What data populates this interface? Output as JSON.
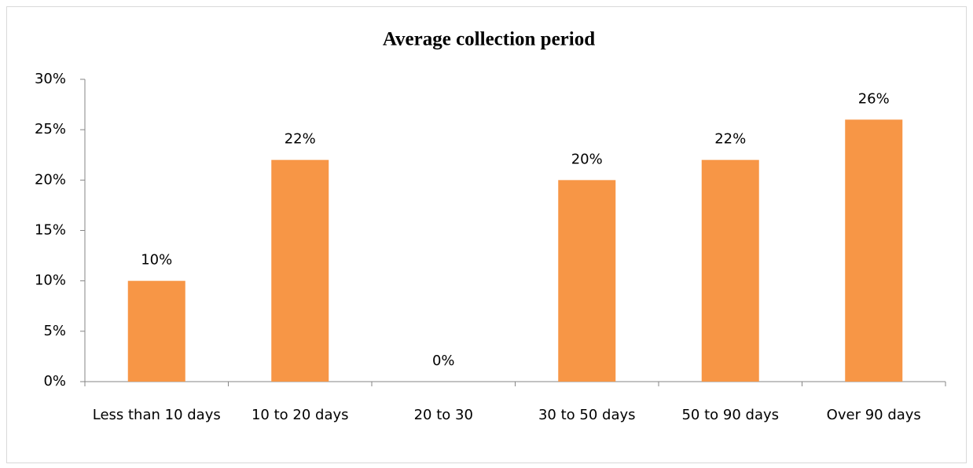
{
  "chart_data": {
    "type": "bar",
    "title": "Average collection period",
    "categories": [
      "Less than 10 days",
      "10 to 20 days",
      "20 to 30",
      "30 to 50 days",
      "50 to 90 days",
      "Over 90 days"
    ],
    "values": [
      10,
      22,
      0,
      20,
      22,
      26
    ],
    "value_labels": [
      "10%",
      "22%",
      "0%",
      "20%",
      "22%",
      "26%"
    ],
    "color": "#f79646",
    "ylim": [
      0,
      30
    ],
    "yticks": [
      {
        "value": 0,
        "label": "0%"
      },
      {
        "value": 5,
        "label": "5%"
      },
      {
        "value": 10,
        "label": "10%"
      },
      {
        "value": 15,
        "label": "15%"
      },
      {
        "value": 20,
        "label": "20%"
      },
      {
        "value": 25,
        "label": "25%"
      },
      {
        "value": 30,
        "label": "30%"
      }
    ],
    "grid": false
  }
}
